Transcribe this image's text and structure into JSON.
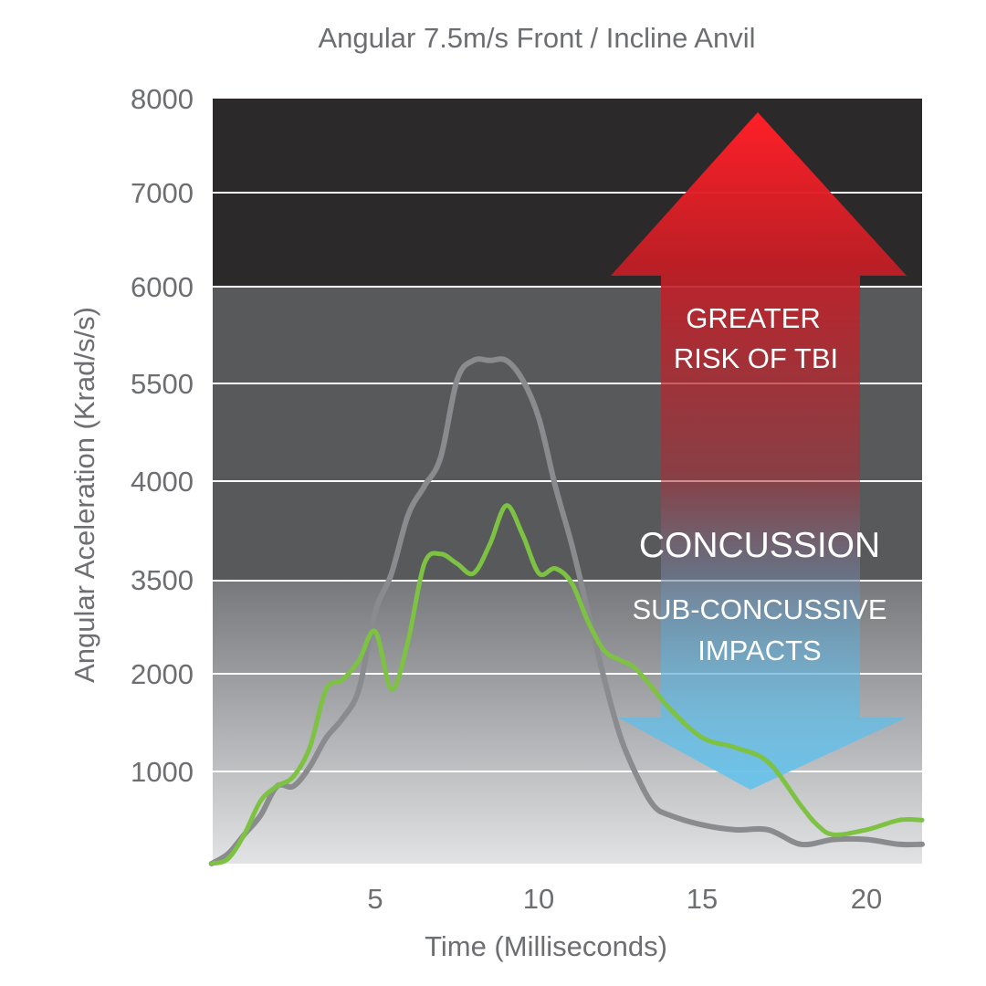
{
  "chart_data": {
    "type": "line",
    "title": "Angular 7.5m/s Front / Incline Anvil",
    "xlabel": "Time (Milliseconds)",
    "ylabel": "Angular Aceleration (Krad/s/s)",
    "x_ticks": [
      "5",
      "10",
      "15",
      "20"
    ],
    "y_ticks": [
      "1000",
      "2000",
      "3500",
      "4000",
      "5500",
      "6000",
      "7000",
      "8000"
    ],
    "zones": [
      {
        "label": "GREATER RISK OF TBI",
        "from": "6000",
        "to": "8000",
        "color": "#2b292a"
      },
      {
        "label": "CONCUSSION",
        "from": "3500",
        "to": "6000",
        "color": "#58595b"
      },
      {
        "label": "SUB-CONCUSSIVE IMPACTS",
        "from": "0",
        "to": "3500",
        "color": "#9d9fa2"
      }
    ],
    "annotations": {
      "up_arrow": [
        "GREATER",
        "RISK OF TBI"
      ],
      "concussion": "CONCUSSION",
      "down_arrow": [
        "SUB-CONCUSSIVE",
        "IMPACTS"
      ]
    },
    "grid": true,
    "series": [
      {
        "color": "#8a8b8e",
        "points": [
          [
            0,
            0
          ],
          [
            0.5,
            0.1
          ],
          [
            1,
            0.3
          ],
          [
            1.5,
            0.5
          ],
          [
            2,
            0.8
          ],
          [
            2.5,
            0.8
          ],
          [
            3,
            1.0
          ],
          [
            3.5,
            1.3
          ],
          [
            4,
            1.5
          ],
          [
            4.5,
            1.8
          ],
          [
            5,
            2.6
          ],
          [
            5.5,
            3.0
          ],
          [
            6,
            3.6
          ],
          [
            6.5,
            3.9
          ],
          [
            7,
            4.2
          ],
          [
            7.5,
            5.0
          ],
          [
            8,
            5.2
          ],
          [
            8.5,
            5.2
          ],
          [
            9,
            5.2
          ],
          [
            9.5,
            5.0
          ],
          [
            10,
            4.6
          ],
          [
            10.5,
            3.9
          ],
          [
            11,
            3.3
          ],
          [
            11.5,
            2.6
          ],
          [
            12,
            1.9
          ],
          [
            12.5,
            1.3
          ],
          [
            13,
            0.9
          ],
          [
            13.5,
            0.6
          ],
          [
            14,
            0.5
          ],
          [
            15,
            0.4
          ],
          [
            16,
            0.35
          ],
          [
            17,
            0.35
          ],
          [
            18,
            0.2
          ],
          [
            19,
            0.25
          ],
          [
            20,
            0.25
          ],
          [
            21,
            0.2
          ],
          [
            21.7,
            0.2
          ]
        ]
      },
      {
        "color": "#7dc242",
        "points": [
          [
            0,
            0
          ],
          [
            0.5,
            0.05
          ],
          [
            1,
            0.3
          ],
          [
            1.5,
            0.65
          ],
          [
            2,
            0.8
          ],
          [
            2.5,
            0.9
          ],
          [
            3,
            1.2
          ],
          [
            3.5,
            1.8
          ],
          [
            4,
            1.9
          ],
          [
            4.5,
            2.1
          ],
          [
            5,
            2.4
          ],
          [
            5.5,
            1.8
          ],
          [
            6,
            2.3
          ],
          [
            6.5,
            3.1
          ],
          [
            7,
            3.2
          ],
          [
            7.5,
            3.1
          ],
          [
            8,
            3.0
          ],
          [
            8.5,
            3.3
          ],
          [
            9,
            3.7
          ],
          [
            9.5,
            3.4
          ],
          [
            10,
            3.0
          ],
          [
            10.5,
            3.05
          ],
          [
            11,
            2.9
          ],
          [
            11.5,
            2.5
          ],
          [
            12,
            2.2
          ],
          [
            12.5,
            2.1
          ],
          [
            13,
            2.0
          ],
          [
            14,
            1.6
          ],
          [
            15,
            1.3
          ],
          [
            16,
            1.2
          ],
          [
            17,
            1.05
          ],
          [
            18,
            0.6
          ],
          [
            18.5,
            0.4
          ],
          [
            19,
            0.3
          ],
          [
            20,
            0.35
          ],
          [
            21,
            0.45
          ],
          [
            21.7,
            0.45
          ]
        ]
      }
    ]
  }
}
